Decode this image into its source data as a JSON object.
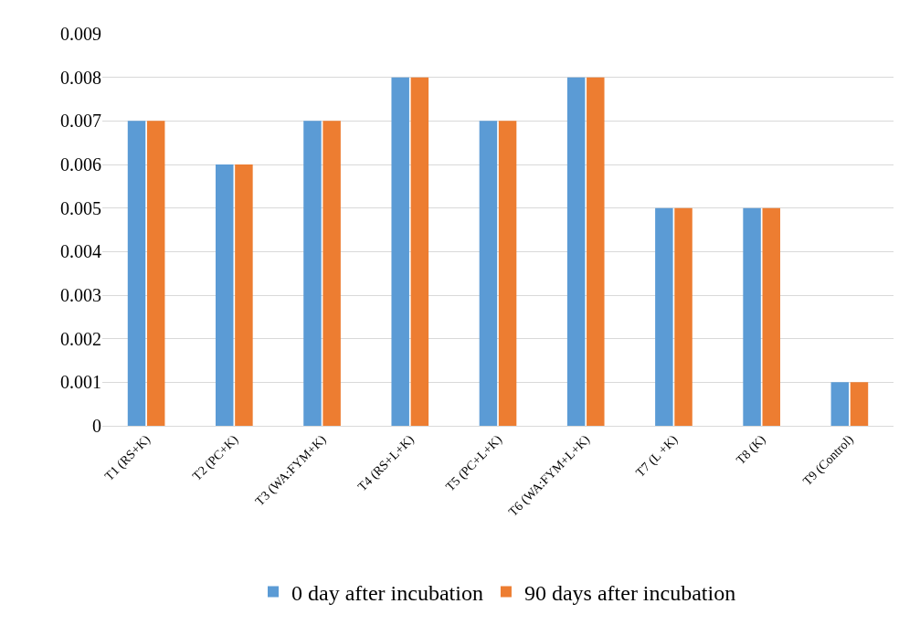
{
  "chart_data": {
    "type": "bar",
    "categories": [
      "T1 (RS+K)",
      "T2 (PC+K)",
      "T3 (WA:FYM+K)",
      "T4 (RS+L+K)",
      "T5 (PC+L+K)",
      "T6 (WA:FYM+L+K)",
      "T7 (L +K)",
      "T8 (K)",
      "T9 (Control)"
    ],
    "series": [
      {
        "name": "0 day after incubation",
        "color": "#5b9bd5",
        "values": [
          0.007,
          0.006,
          0.007,
          0.008,
          0.007,
          0.008,
          0.005,
          0.005,
          0.001
        ]
      },
      {
        "name": "90 days after incubation",
        "color": "#ed7d31",
        "values": [
          0.007,
          0.006,
          0.007,
          0.008,
          0.007,
          0.008,
          0.005,
          0.005,
          0.001
        ]
      }
    ],
    "ylim": [
      0,
      0.009
    ],
    "yticks": [
      {
        "value": 0,
        "label": "0"
      },
      {
        "value": 0.001,
        "label": "0.001"
      },
      {
        "value": 0.002,
        "label": "0.002"
      },
      {
        "value": 0.003,
        "label": "0.003"
      },
      {
        "value": 0.004,
        "label": "0.004"
      },
      {
        "value": 0.005,
        "label": "0.005"
      },
      {
        "value": 0.006,
        "label": "0.006"
      },
      {
        "value": 0.007,
        "label": "0.007"
      },
      {
        "value": 0.008,
        "label": "0.008"
      },
      {
        "value": 0.009,
        "label": "0.009"
      }
    ],
    "grid": "y",
    "legend": "bottom"
  }
}
